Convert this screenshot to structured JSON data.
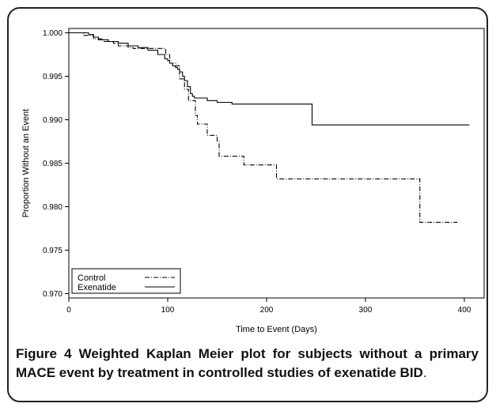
{
  "chart_data": {
    "type": "line",
    "xlabel": "Time to Event (Days)",
    "ylabel": "Proportion Without an Event",
    "xlim": [
      0,
      420
    ],
    "ylim": [
      0.9695,
      1.0005
    ],
    "x_ticks": [
      0,
      100,
      200,
      300,
      400
    ],
    "y_ticks": [
      0.97,
      0.975,
      0.98,
      0.985,
      0.99,
      0.995,
      1.0
    ],
    "x_tick_labels": [
      "0",
      "100",
      "200",
      "300",
      "400"
    ],
    "y_tick_labels": [
      "0.970",
      "0.975",
      "0.980",
      "0.985",
      "0.990",
      "0.995",
      "1.000"
    ],
    "legend_position": "bottom-left",
    "series": [
      {
        "name": "Control",
        "style": "dash-dot",
        "color": "#000000",
        "x": [
          0,
          5,
          15,
          25,
          35,
          45,
          50,
          60,
          65,
          70,
          75,
          97,
          98,
          101,
          102,
          105,
          108,
          110,
          112,
          116,
          117,
          120,
          121,
          125,
          128,
          130,
          140,
          150,
          152,
          175,
          177,
          208,
          210,
          353,
          355,
          393
        ],
        "y": [
          1.0,
          1.0,
          0.9997,
          0.9993,
          0.999,
          0.9988,
          0.9985,
          0.9983,
          0.9982,
          0.9982,
          0.9982,
          0.9982,
          0.9975,
          0.9975,
          0.9965,
          0.9965,
          0.9962,
          0.9962,
          0.9947,
          0.9947,
          0.9935,
          0.9935,
          0.9922,
          0.9922,
          0.9905,
          0.9895,
          0.9882,
          0.9875,
          0.9858,
          0.9858,
          0.9848,
          0.9848,
          0.9832,
          0.9832,
          0.9782,
          0.9782
        ]
      },
      {
        "name": "Exenatide",
        "style": "solid",
        "color": "#000000",
        "x": [
          0,
          10,
          20,
          25,
          30,
          40,
          50,
          60,
          70,
          80,
          90,
          97,
          100,
          102,
          105,
          108,
          110,
          112,
          115,
          117,
          120,
          123,
          125,
          127,
          128,
          130,
          140,
          150,
          165,
          245,
          246,
          405
        ],
        "y": [
          1.0,
          1.0,
          0.9998,
          0.9995,
          0.9992,
          0.999,
          0.9988,
          0.9985,
          0.9983,
          0.998,
          0.9975,
          0.997,
          0.9968,
          0.9965,
          0.9962,
          0.996,
          0.9958,
          0.9955,
          0.995,
          0.9945,
          0.9938,
          0.993,
          0.9927,
          0.9925,
          0.9925,
          0.9925,
          0.9922,
          0.992,
          0.9918,
          0.9918,
          0.9894,
          0.9894
        ]
      }
    ]
  },
  "caption": {
    "label": "Figure 4",
    "text": "Weighted Kaplan Meier plot for subjects without a primary MACE event by treatment in controlled studies of exenatide BID",
    "tail": "."
  }
}
